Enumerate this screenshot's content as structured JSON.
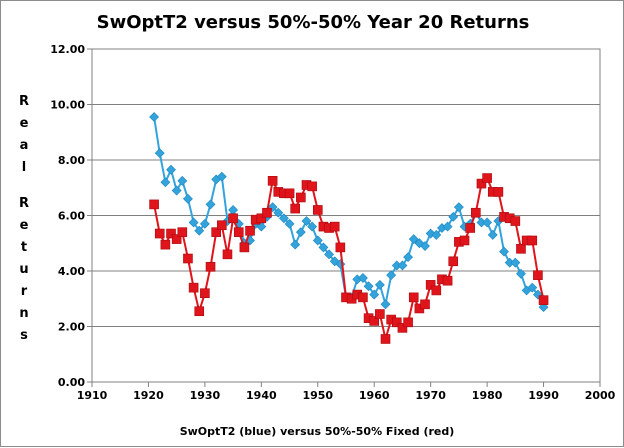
{
  "chart_data": {
    "type": "line",
    "title": "SwOptT2 versus 50%-50% Year 20 Returns",
    "xlabel": "SwOptT2 (blue) versus 50%-50% Fixed (red)",
    "ylabel": "Real Returns",
    "xlim": [
      1910,
      2000
    ],
    "ylim": [
      0,
      12
    ],
    "x_ticks": [
      "1910",
      "1920",
      "1930",
      "1940",
      "1950",
      "1960",
      "1970",
      "1980",
      "1990",
      "2000"
    ],
    "y_ticks": [
      "0.00",
      "2.00",
      "4.00",
      "6.00",
      "8.00",
      "10.00",
      "12.00"
    ],
    "grid": true,
    "legend": "none",
    "colors": {
      "blue": "#33a3dc",
      "red": "#e0141b",
      "grid": "#808080"
    },
    "series": [
      {
        "x": [
          1921,
          1922,
          1923,
          1924,
          1925,
          1926,
          1927,
          1928,
          1929,
          1930,
          1931,
          1932,
          1933,
          1934,
          1935,
          1936,
          1937,
          1938,
          1939,
          1940,
          1941,
          1942,
          1943,
          1944,
          1945,
          1946,
          1947,
          1948,
          1949,
          1950,
          1951,
          1952,
          1953,
          1954,
          1955,
          1956,
          1957,
          1958,
          1959,
          1960,
          1961,
          1962,
          1963,
          1964,
          1965,
          1966,
          1967,
          1968,
          1969,
          1970,
          1971,
          1972,
          1973,
          1974,
          1975,
          1976,
          1977,
          1978,
          1979,
          1980,
          1981,
          1982,
          1983,
          1984,
          1985,
          1986,
          1987,
          1988,
          1989,
          1990
        ],
        "values": [
          9.55,
          8.25,
          7.2,
          7.65,
          6.9,
          7.25,
          6.6,
          5.75,
          5.45,
          5.7,
          6.4,
          7.3,
          7.4,
          5.8,
          6.2,
          5.7,
          5.0,
          5.1,
          5.7,
          5.6,
          5.95,
          6.3,
          6.1,
          5.9,
          5.7,
          4.95,
          5.4,
          5.8,
          5.6,
          5.1,
          4.85,
          4.6,
          4.35,
          4.25,
          3.05,
          3.05,
          3.7,
          3.75,
          3.45,
          3.15,
          3.5,
          2.8,
          3.85,
          4.2,
          4.2,
          4.5,
          5.15,
          5.0,
          4.9,
          5.35,
          5.3,
          5.55,
          5.6,
          5.95,
          6.3,
          5.6,
          5.7,
          6.1,
          5.75,
          5.75,
          5.3,
          5.8,
          4.7,
          4.3,
          4.3,
          3.9,
          3.3,
          3.4,
          3.15,
          2.7
        ]
      },
      {
        "x": [
          1921,
          1922,
          1923,
          1924,
          1925,
          1926,
          1927,
          1928,
          1929,
          1930,
          1931,
          1932,
          1933,
          1934,
          1935,
          1936,
          1937,
          1938,
          1939,
          1940,
          1941,
          1942,
          1943,
          1944,
          1945,
          1946,
          1947,
          1948,
          1949,
          1950,
          1951,
          1952,
          1953,
          1954,
          1955,
          1956,
          1957,
          1958,
          1959,
          1960,
          1961,
          1962,
          1963,
          1964,
          1965,
          1966,
          1967,
          1968,
          1969,
          1970,
          1971,
          1972,
          1973,
          1974,
          1975,
          1976,
          1977,
          1978,
          1979,
          1980,
          1981,
          1982,
          1983,
          1984,
          1985,
          1986,
          1987,
          1988,
          1989,
          1990
        ],
        "values": [
          6.4,
          5.35,
          4.95,
          5.35,
          5.15,
          5.4,
          4.45,
          3.4,
          2.55,
          3.2,
          4.15,
          5.4,
          5.65,
          4.6,
          5.9,
          5.4,
          4.85,
          5.45,
          5.85,
          5.9,
          6.1,
          7.25,
          6.85,
          6.8,
          6.8,
          6.25,
          6.65,
          7.1,
          7.05,
          6.2,
          5.6,
          5.55,
          5.6,
          4.85,
          3.05,
          3.0,
          3.15,
          3.05,
          2.3,
          2.2,
          2.45,
          1.55,
          2.25,
          2.15,
          1.95,
          2.15,
          3.05,
          2.65,
          2.8,
          3.5,
          3.3,
          3.7,
          3.65,
          4.35,
          5.05,
          5.1,
          5.55,
          6.1,
          7.15,
          7.35,
          6.85,
          6.85,
          5.95,
          5.9,
          5.8,
          4.8,
          5.1,
          5.1,
          3.85,
          2.95
        ]
      }
    ]
  }
}
